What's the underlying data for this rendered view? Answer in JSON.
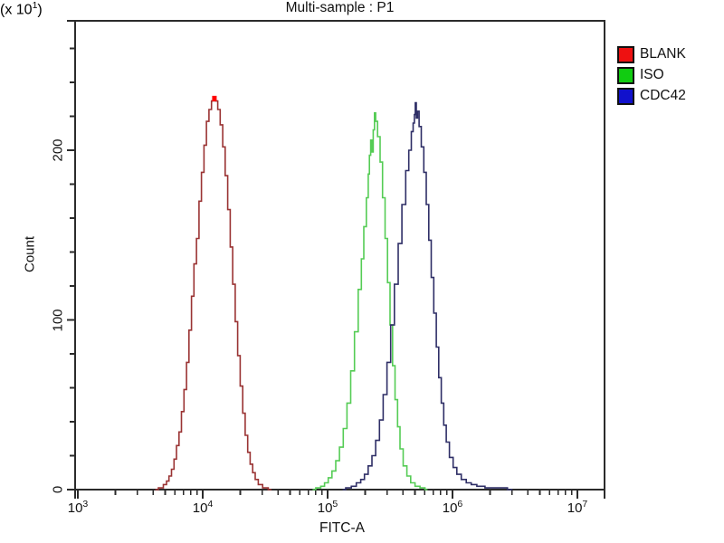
{
  "title": "Multi-sample : P1",
  "legend": {
    "items": [
      {
        "label": "BLANK",
        "color": "#ee1111"
      },
      {
        "label": "ISO",
        "color": "#11cc11"
      },
      {
        "label": "CDC42",
        "color": "#1111cc"
      }
    ]
  },
  "axes": {
    "y_scale_label": {
      "prefix": "(x 10",
      "sup": "1",
      "suffix": ")"
    },
    "y_title": "Count",
    "x_title": "FITC-A",
    "x_tick_base": "10"
  },
  "chart_data": {
    "type": "line",
    "subtype": "flow-cytometry-histogram",
    "title": "Multi-sample : P1",
    "xlabel": "FITC-A",
    "ylabel": "Count (x 10^1)",
    "x_scale": "log10",
    "xlim_log10": [
      3.0,
      7.2
    ],
    "ylim": [
      0,
      276
    ],
    "x_tick_exponents": [
      3,
      4,
      5,
      6,
      7
    ],
    "y_major_ticks": [
      0,
      100,
      200
    ],
    "y_minor_step": 20,
    "grid": false,
    "legend_position": "top-right-outside",
    "series": [
      {
        "name": "BLANK",
        "curve_color": "#9a3333",
        "legend_color": "#ee1111",
        "peak": {
          "log10_x": 4.09,
          "count": 231
        },
        "peak_marker_color": "#ff0000",
        "points_log10x_count": [
          [
            3.62,
            0
          ],
          [
            3.67,
            1
          ],
          [
            3.7,
            3
          ],
          [
            3.72,
            5
          ],
          [
            3.74,
            8
          ],
          [
            3.76,
            12
          ],
          [
            3.78,
            18
          ],
          [
            3.8,
            26
          ],
          [
            3.82,
            34
          ],
          [
            3.84,
            46
          ],
          [
            3.86,
            59
          ],
          [
            3.88,
            75
          ],
          [
            3.9,
            94
          ],
          [
            3.92,
            114
          ],
          [
            3.94,
            133
          ],
          [
            3.96,
            148
          ],
          [
            3.98,
            170
          ],
          [
            4.0,
            187
          ],
          [
            4.02,
            203
          ],
          [
            4.04,
            217
          ],
          [
            4.06,
            224
          ],
          [
            4.08,
            229
          ],
          [
            4.09,
            231
          ],
          [
            4.11,
            229
          ],
          [
            4.13,
            224
          ],
          [
            4.15,
            215
          ],
          [
            4.17,
            202
          ],
          [
            4.19,
            185
          ],
          [
            4.21,
            165
          ],
          [
            4.23,
            143
          ],
          [
            4.25,
            121
          ],
          [
            4.27,
            99
          ],
          [
            4.29,
            79
          ],
          [
            4.31,
            61
          ],
          [
            4.33,
            45
          ],
          [
            4.35,
            32
          ],
          [
            4.37,
            22
          ],
          [
            4.39,
            15
          ],
          [
            4.41,
            10
          ],
          [
            4.43,
            6
          ],
          [
            4.46,
            3
          ],
          [
            4.5,
            1
          ],
          [
            4.55,
            0
          ]
        ]
      },
      {
        "name": "ISO",
        "curve_color": "#55cc55",
        "legend_color": "#11cc11",
        "peak": {
          "log10_x": 5.38,
          "count": 222
        },
        "points_log10x_count": [
          [
            4.88,
            0
          ],
          [
            4.93,
            1
          ],
          [
            4.96,
            2
          ],
          [
            4.99,
            4
          ],
          [
            5.02,
            7
          ],
          [
            5.05,
            11
          ],
          [
            5.08,
            17
          ],
          [
            5.11,
            25
          ],
          [
            5.14,
            36
          ],
          [
            5.17,
            51
          ],
          [
            5.2,
            70
          ],
          [
            5.23,
            93
          ],
          [
            5.26,
            118
          ],
          [
            5.28,
            136
          ],
          [
            5.3,
            155
          ],
          [
            5.32,
            172
          ],
          [
            5.33,
            186
          ],
          [
            5.34,
            197
          ],
          [
            5.35,
            206
          ],
          [
            5.36,
            199
          ],
          [
            5.37,
            212
          ],
          [
            5.38,
            222
          ],
          [
            5.39,
            217
          ],
          [
            5.41,
            208
          ],
          [
            5.43,
            193
          ],
          [
            5.45,
            172
          ],
          [
            5.47,
            148
          ],
          [
            5.49,
            122
          ],
          [
            5.51,
            97
          ],
          [
            5.53,
            73
          ],
          [
            5.55,
            53
          ],
          [
            5.57,
            37
          ],
          [
            5.59,
            24
          ],
          [
            5.62,
            14
          ],
          [
            5.65,
            8
          ],
          [
            5.68,
            4
          ],
          [
            5.72,
            2
          ],
          [
            5.76,
            1
          ],
          [
            5.8,
            0
          ]
        ]
      },
      {
        "name": "CDC42",
        "curve_color": "#2e2e66",
        "legend_color": "#1111cc",
        "peak": {
          "log10_x": 5.705,
          "count": 228
        },
        "points_log10x_count": [
          [
            5.12,
            0
          ],
          [
            5.17,
            1
          ],
          [
            5.21,
            2
          ],
          [
            5.25,
            4
          ],
          [
            5.28,
            6
          ],
          [
            5.31,
            9
          ],
          [
            5.34,
            14
          ],
          [
            5.37,
            20
          ],
          [
            5.4,
            29
          ],
          [
            5.43,
            41
          ],
          [
            5.46,
            56
          ],
          [
            5.49,
            75
          ],
          [
            5.52,
            97
          ],
          [
            5.55,
            121
          ],
          [
            5.58,
            145
          ],
          [
            5.61,
            168
          ],
          [
            5.64,
            188
          ],
          [
            5.66,
            200
          ],
          [
            5.68,
            211
          ],
          [
            5.69,
            216
          ],
          [
            5.7,
            221
          ],
          [
            5.705,
            228
          ],
          [
            5.715,
            219
          ],
          [
            5.725,
            223
          ],
          [
            5.74,
            214
          ],
          [
            5.76,
            202
          ],
          [
            5.78,
            187
          ],
          [
            5.8,
            168
          ],
          [
            5.82,
            147
          ],
          [
            5.84,
            125
          ],
          [
            5.86,
            104
          ],
          [
            5.88,
            84
          ],
          [
            5.9,
            66
          ],
          [
            5.92,
            51
          ],
          [
            5.94,
            38
          ],
          [
            5.96,
            28
          ],
          [
            5.99,
            19
          ],
          [
            6.02,
            13
          ],
          [
            6.05,
            9
          ],
          [
            6.09,
            6
          ],
          [
            6.13,
            4
          ],
          [
            6.17,
            3
          ],
          [
            6.22,
            2
          ],
          [
            6.3,
            1
          ],
          [
            6.4,
            1
          ],
          [
            6.48,
            0
          ]
        ]
      }
    ]
  }
}
